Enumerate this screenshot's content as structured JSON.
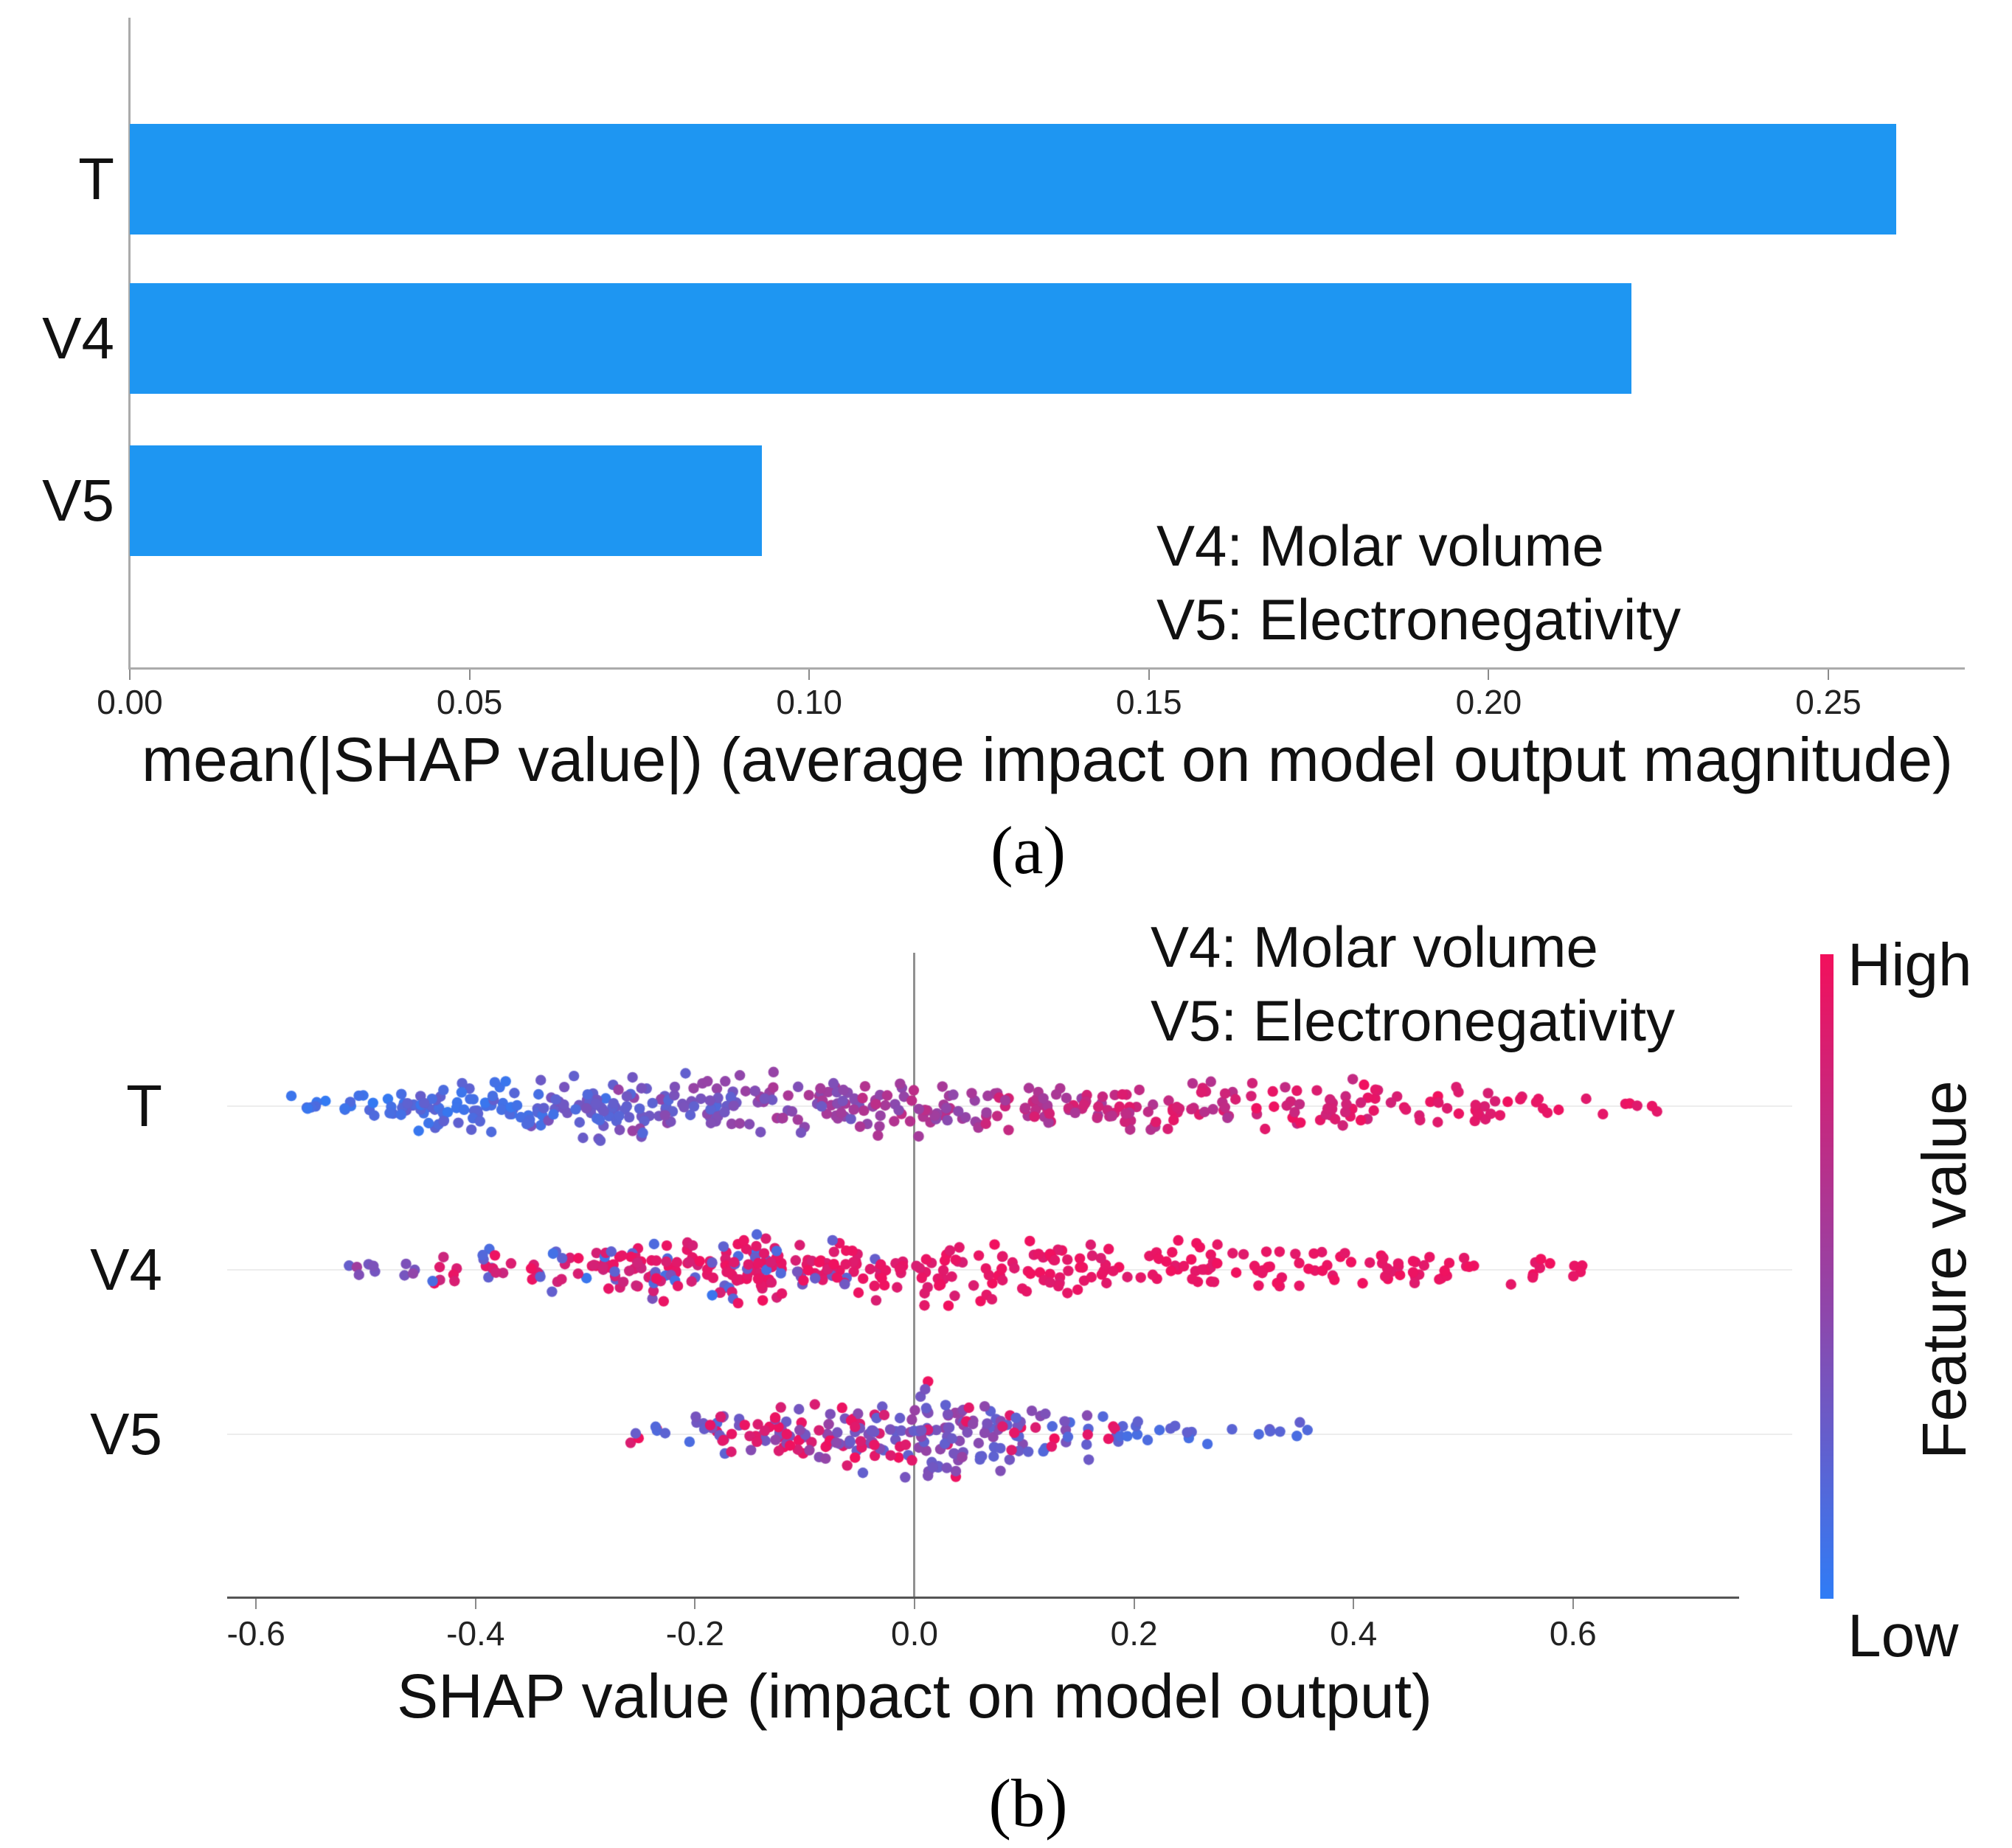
{
  "chart_data": [
    {
      "type": "bar",
      "orientation": "horizontal",
      "categories": [
        "T",
        "V4",
        "V5"
      ],
      "values": [
        0.26,
        0.221,
        0.093
      ],
      "xlabel": "mean(|SHAP value|) (average impact on model output magnitude)",
      "xlim": [
        0,
        0.27
      ],
      "xticks": [
        0,
        0.05,
        0.1,
        0.15,
        0.2,
        0.25
      ],
      "xtick_labels": [
        "0.00",
        "0.05",
        "0.10",
        "0.15",
        "0.20",
        "0.25"
      ],
      "bar_color": "#1e96f2",
      "grid": false,
      "annotation_lines": [
        "V4: Molar volume",
        "V5: Electronegativity"
      ],
      "caption": "(a)"
    },
    {
      "type": "scatter",
      "variant": "shap-beeswarm",
      "features": [
        "T",
        "V4",
        "V5"
      ],
      "xlabel": "SHAP value (impact on model output)",
      "xlim": [
        -0.72,
        0.78
      ],
      "xticks": [
        -0.6,
        -0.4,
        -0.2,
        0,
        0.2,
        0.4,
        0.6
      ],
      "xtick_labels": [
        "-0.6",
        "-0.4",
        "-0.2",
        "0.0",
        "0.2",
        "0.4",
        "0.6"
      ],
      "annotation_lines": [
        "V4: Molar volume",
        "V5: Electronegativity"
      ],
      "caption": "(b)",
      "colorbar": {
        "label": "Feature value",
        "high_label": "High",
        "low_label": "Low",
        "high_color": "#f2105c",
        "low_color": "#2f7cf6"
      },
      "swarm_clusters": {
        "T": [
          {
            "x": [
              -0.57,
              -0.47
            ],
            "n": 20,
            "v": [
              0.02,
              0.2
            ],
            "spread": 0.35
          },
          {
            "x": [
              -0.47,
              -0.36
            ],
            "n": 62,
            "v": [
              0.03,
              0.3
            ],
            "spread": 0.8
          },
          {
            "x": [
              -0.36,
              -0.27
            ],
            "n": 55,
            "v": [
              0.08,
              0.4
            ],
            "spread": 0.9
          },
          {
            "x": [
              -0.27,
              -0.16
            ],
            "n": 65,
            "v": [
              0.18,
              0.55
            ],
            "spread": 1.0
          },
          {
            "x": [
              -0.16,
              -0.05
            ],
            "n": 55,
            "v": [
              0.32,
              0.65
            ],
            "spread": 0.9
          },
          {
            "x": [
              -0.05,
              0.06
            ],
            "n": 50,
            "v": [
              0.45,
              0.75
            ],
            "spread": 0.85
          },
          {
            "x": [
              0.06,
              0.18
            ],
            "n": 50,
            "v": [
              0.55,
              0.88
            ],
            "spread": 0.85
          },
          {
            "x": [
              0.18,
              0.3
            ],
            "n": 46,
            "v": [
              0.65,
              0.95
            ],
            "spread": 0.85
          },
          {
            "x": [
              0.3,
              0.44
            ],
            "n": 44,
            "v": [
              0.75,
              1.0
            ],
            "spread": 0.8
          },
          {
            "x": [
              0.44,
              0.56
            ],
            "n": 26,
            "v": [
              0.85,
              1.0
            ],
            "spread": 0.55
          },
          {
            "x": [
              0.56,
              0.68
            ],
            "n": 12,
            "v": [
              0.9,
              1.0
            ],
            "spread": 0.3
          }
        ],
        "V4": [
          {
            "x": [
              -0.52,
              -0.44
            ],
            "n": 10,
            "v": [
              0.25,
              0.6
            ],
            "spread": 0.3
          },
          {
            "x": [
              -0.44,
              -0.34
            ],
            "n": 26,
            "v": [
              0.78,
              1.0
            ],
            "f2": 0.3,
            "v2": [
              0.05,
              0.35
            ],
            "spread": 0.55
          },
          {
            "x": [
              -0.34,
              -0.24
            ],
            "n": 45,
            "v": [
              0.8,
              1.0
            ],
            "f2": 0.25,
            "v2": [
              0.05,
              0.35
            ],
            "spread": 0.85
          },
          {
            "x": [
              -0.24,
              -0.17
            ],
            "n": 50,
            "v": [
              0.82,
              1.0
            ],
            "f2": 0.3,
            "v2": [
              0.05,
              0.4
            ],
            "spread": 0.95
          },
          {
            "x": [
              -0.17,
              -0.12
            ],
            "n": 56,
            "v": [
              0.85,
              1.0
            ],
            "f2": 0.35,
            "v2": [
              0.02,
              0.3
            ],
            "spread": 1.05
          },
          {
            "x": [
              -0.12,
              -0.03
            ],
            "n": 50,
            "v": [
              0.85,
              1.0
            ],
            "f2": 0.15,
            "v2": [
              0.1,
              0.4
            ],
            "spread": 0.9
          },
          {
            "x": [
              -0.03,
              0.08
            ],
            "n": 46,
            "v": [
              0.85,
              1.0
            ],
            "f2": 0.06,
            "v2": [
              0.2,
              0.5
            ],
            "spread": 0.85
          },
          {
            "x": [
              0.08,
              0.2
            ],
            "n": 46,
            "v": [
              0.88,
              1.0
            ],
            "spread": 0.85
          },
          {
            "x": [
              0.2,
              0.34
            ],
            "n": 45,
            "v": [
              0.9,
              1.0
            ],
            "spread": 0.8
          },
          {
            "x": [
              0.34,
              0.48
            ],
            "n": 36,
            "v": [
              0.9,
              1.0
            ],
            "spread": 0.7
          },
          {
            "x": [
              0.48,
              0.62
            ],
            "n": 18,
            "v": [
              0.92,
              1.0
            ],
            "spread": 0.45
          }
        ],
        "V5": [
          {
            "x": [
              -0.26,
              -0.2
            ],
            "n": 8,
            "v": [
              0.1,
              0.3
            ],
            "f2": 0.4,
            "v2": [
              0.85,
              1.0
            ],
            "spread": 0.22
          },
          {
            "x": [
              -0.2,
              -0.13
            ],
            "n": 30,
            "v": [
              0.85,
              1.0
            ],
            "f2": 0.45,
            "v2": [
              0.15,
              0.45
            ],
            "spread": 0.5
          },
          {
            "x": [
              -0.13,
              -0.06
            ],
            "n": 46,
            "v": [
              0.3,
              0.55
            ],
            "f2": 0.45,
            "v2": [
              0.85,
              1.0
            ],
            "spread": 0.65
          },
          {
            "x": [
              -0.06,
              -0.01
            ],
            "n": 40,
            "v": [
              0.25,
              0.5
            ],
            "f2": 0.3,
            "v2": [
              0.85,
              1.0
            ],
            "spread": 0.8
          },
          {
            "x": [
              -0.01,
              0.045
            ],
            "n": 58,
            "v": [
              0.25,
              0.55
            ],
            "f2": 0.1,
            "v2": [
              0.85,
              1.0
            ],
            "spread": 1.0
          },
          {
            "x": [
              0.045,
              0.11
            ],
            "n": 40,
            "v": [
              0.2,
              0.5
            ],
            "f2": 0.12,
            "v2": [
              0.85,
              1.0
            ],
            "spread": 0.75
          },
          {
            "x": [
              0.11,
              0.19
            ],
            "n": 26,
            "v": [
              0.15,
              0.45
            ],
            "f2": 0.1,
            "v2": [
              0.85,
              1.0
            ],
            "spread": 0.5
          },
          {
            "x": [
              0.19,
              0.27
            ],
            "n": 12,
            "v": [
              0.1,
              0.35
            ],
            "spread": 0.3
          },
          {
            "x": [
              0.27,
              0.36
            ],
            "n": 8,
            "v": [
              0.05,
              0.3
            ],
            "spread": 0.2
          }
        ]
      }
    }
  ]
}
